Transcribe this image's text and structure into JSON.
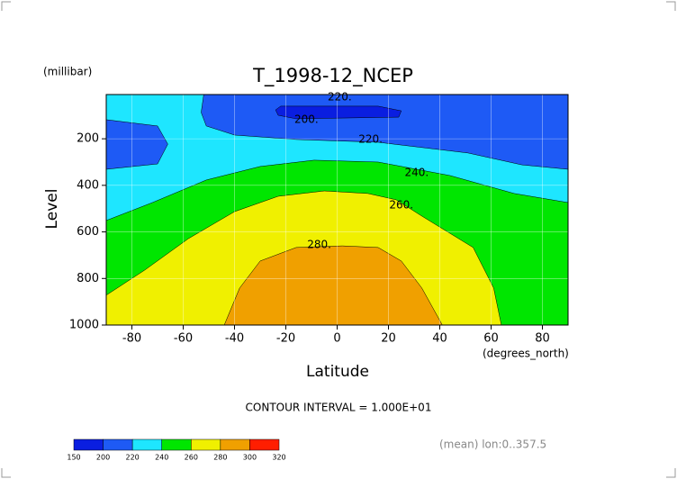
{
  "chart_data": {
    "type": "contour",
    "title": "T_1998-12_NCEP",
    "x_label": "Latitude",
    "x_unit": "(degrees_north)",
    "y_label": "Level",
    "y_unit": "(millibar)",
    "xlim": [
      -90,
      90
    ],
    "xticks": [
      -80,
      -60,
      -40,
      -20,
      0,
      20,
      40,
      60,
      80
    ],
    "ylim": [
      1000,
      10
    ],
    "yticks": [
      200,
      400,
      600,
      800,
      1000
    ],
    "grid": true,
    "levels": [
      150,
      200,
      220,
      240,
      260,
      280,
      300,
      320
    ],
    "colors": [
      "#0a1ee0",
      "#1e5af5",
      "#1ee6ff",
      "#00e600",
      "#f0f000",
      "#f0a000",
      "#ff1e00"
    ],
    "regions": [
      {
        "min": 200,
        "lat": [
          -90,
          90,
          90,
          -90
        ],
        "level": [
          10,
          10,
          1000,
          1000
        ]
      },
      {
        "min": 220,
        "lat": [
          -90,
          -52,
          -53,
          -51,
          -40,
          -16,
          16,
          51,
          72,
          90,
          90,
          -90,
          -90,
          -70,
          -66,
          -70,
          -90
        ],
        "level": [
          10,
          10,
          87,
          145,
          184,
          203,
          215,
          261,
          312,
          331,
          1000,
          1000,
          331,
          308,
          223,
          145,
          118
        ]
      },
      {
        "min": 240,
        "lat": [
          -90,
          -72,
          -51,
          -30,
          -9,
          16,
          44,
          69,
          90,
          90,
          -90
        ],
        "level": [
          551,
          474,
          377,
          319,
          292,
          300,
          358,
          435,
          474,
          1000,
          1000
        ]
      },
      {
        "min": 260,
        "lat": [
          -90,
          -75,
          -58,
          -40,
          -23,
          -5,
          12,
          23,
          33,
          53,
          61,
          64,
          -90
        ],
        "level": [
          872,
          764,
          629,
          513,
          447,
          424,
          435,
          462,
          532,
          667,
          841,
          1000,
          1000
        ]
      },
      {
        "min": 280,
        "lat": [
          -44,
          -38,
          -30,
          -16,
          2,
          16,
          25,
          33,
          41
        ],
        "level": [
          1000,
          841,
          725,
          667,
          660,
          667,
          725,
          841,
          1000
        ]
      },
      {
        "min": 150,
        "lat": [
          -24,
          -22,
          16,
          25,
          24,
          -16,
          -23
        ],
        "level": [
          76,
          60,
          60,
          80,
          107,
          114,
          99
        ]
      }
    ],
    "contour_labels": [
      {
        "value": 220,
        "label": "220.",
        "lat": 1,
        "level": 22
      },
      {
        "value": 200,
        "label": "200.",
        "lat": -12,
        "level": 118
      },
      {
        "value": 220,
        "label": "220.",
        "lat": 13,
        "level": 203
      },
      {
        "value": 240,
        "label": "240.",
        "lat": 31,
        "level": 346
      },
      {
        "value": 260,
        "label": "260.",
        "lat": 25,
        "level": 486
      },
      {
        "value": 280,
        "label": "280.",
        "lat": -7,
        "level": 656
      }
    ],
    "note": "CONTOUR INTERVAL = 1.000E+01",
    "footer": "(mean) lon:0..357.5"
  }
}
